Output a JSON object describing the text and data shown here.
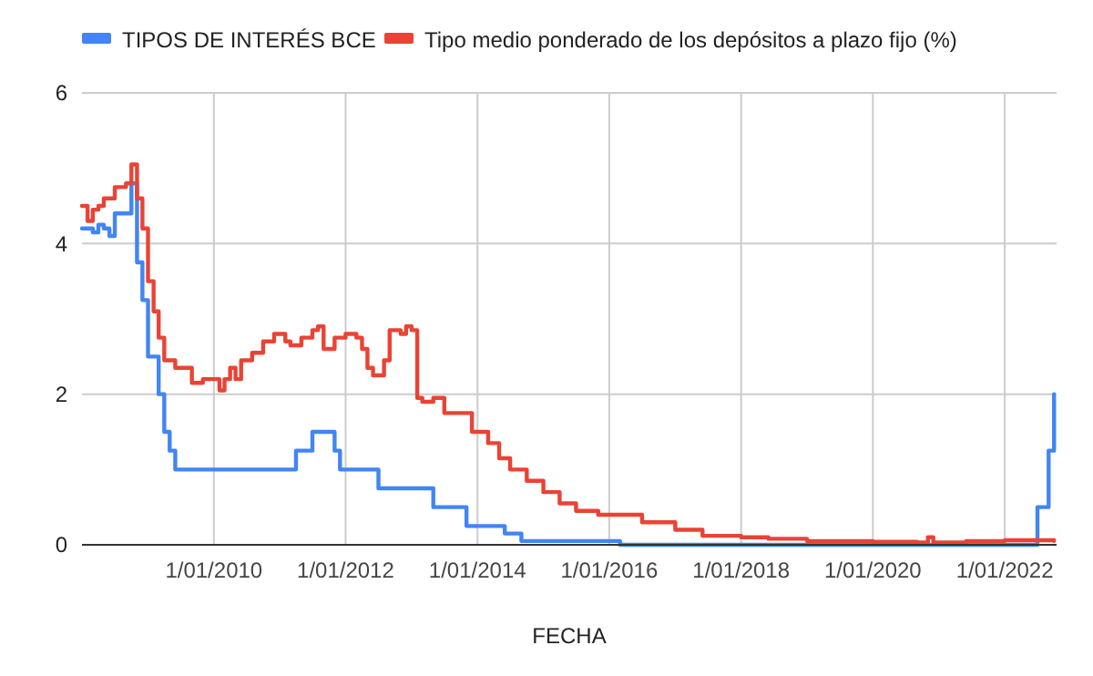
{
  "chart_data": {
    "type": "step",
    "xlabel": "FECHA",
    "legend": "top",
    "grid": true,
    "xlim": [
      "2008-01-01",
      "2022-10-15"
    ],
    "xticks": [
      {
        "value": "2010-01-01",
        "label": "1/01/2010"
      },
      {
        "value": "2012-01-01",
        "label": "1/01/2012"
      },
      {
        "value": "2014-01-01",
        "label": "1/01/2014"
      },
      {
        "value": "2016-01-01",
        "label": "1/01/2016"
      },
      {
        "value": "2018-01-01",
        "label": "1/01/2018"
      },
      {
        "value": "2020-01-01",
        "label": "1/01/2020"
      },
      {
        "value": "2022-01-01",
        "label": "1/01/2022"
      }
    ],
    "ylim": [
      0,
      6
    ],
    "yticks": [
      0,
      2,
      4,
      6
    ],
    "series": [
      {
        "name": "TIPOS DE INTERÉS BCE",
        "color": "#4285f4",
        "x": [
          "2008-01",
          "2008-03",
          "2008-04",
          "2008-05",
          "2008-06",
          "2008-07",
          "2008-10",
          "2008-11",
          "2008-12",
          "2009-01",
          "2009-03",
          "2009-04",
          "2009-05",
          "2009-06",
          "2011-04",
          "2011-07",
          "2011-11",
          "2011-12",
          "2012-07",
          "2013-05",
          "2013-11",
          "2014-06",
          "2014-09",
          "2016-03",
          "2022-07",
          "2022-09",
          "2022-10"
        ],
        "values": [
          4.2,
          4.15,
          4.25,
          4.2,
          4.1,
          4.4,
          4.8,
          3.75,
          3.25,
          2.5,
          2.0,
          1.5,
          1.25,
          1.0,
          1.25,
          1.5,
          1.25,
          1.0,
          0.75,
          0.5,
          0.25,
          0.15,
          0.05,
          0,
          0.5,
          1.25,
          2.0
        ]
      },
      {
        "name": "Tipo medio ponderado de los depósitos a plazo fijo (%)",
        "color": "#ea4335",
        "x": [
          "2008-01",
          "2008-02",
          "2008-03",
          "2008-04",
          "2008-05",
          "2008-07",
          "2008-09",
          "2008-10",
          "2008-11",
          "2008-12",
          "2009-01",
          "2009-02",
          "2009-03",
          "2009-04",
          "2009-06",
          "2009-08",
          "2009-09",
          "2009-11",
          "2010-01",
          "2010-02",
          "2010-03",
          "2010-04",
          "2010-05",
          "2010-06",
          "2010-08",
          "2010-10",
          "2010-12",
          "2011-02",
          "2011-03",
          "2011-05",
          "2011-07",
          "2011-08",
          "2011-09",
          "2011-11",
          "2012-01",
          "2012-03",
          "2012-04",
          "2012-05",
          "2012-06",
          "2012-08",
          "2012-09",
          "2012-11",
          "2012-12",
          "2013-01",
          "2013-02",
          "2013-03",
          "2013-05",
          "2013-07",
          "2013-09",
          "2013-12",
          "2014-03",
          "2014-05",
          "2014-07",
          "2014-10",
          "2015-01",
          "2015-04",
          "2015-07",
          "2015-11",
          "2016-03",
          "2016-07",
          "2017-01",
          "2017-06",
          "2018-01",
          "2018-06",
          "2019-01",
          "2020-01",
          "2020-09",
          "2020-11",
          "2020-12",
          "2021-06",
          "2022-01",
          "2022-10"
        ],
        "values": [
          4.5,
          4.3,
          4.45,
          4.5,
          4.6,
          4.75,
          4.8,
          5.05,
          4.6,
          4.2,
          3.5,
          3.1,
          2.75,
          2.45,
          2.35,
          2.35,
          2.15,
          2.2,
          2.2,
          2.05,
          2.2,
          2.35,
          2.2,
          2.45,
          2.55,
          2.7,
          2.8,
          2.7,
          2.65,
          2.75,
          2.85,
          2.9,
          2.6,
          2.75,
          2.8,
          2.75,
          2.6,
          2.35,
          2.25,
          2.45,
          2.85,
          2.8,
          2.9,
          2.85,
          1.95,
          1.9,
          1.95,
          1.75,
          1.75,
          1.5,
          1.35,
          1.15,
          1.0,
          0.85,
          0.7,
          0.55,
          0.45,
          0.4,
          0.4,
          0.3,
          0.2,
          0.12,
          0.1,
          0.08,
          0.05,
          0.04,
          0.03,
          0.1,
          0.03,
          0.05,
          0.06,
          0.05
        ]
      }
    ]
  }
}
